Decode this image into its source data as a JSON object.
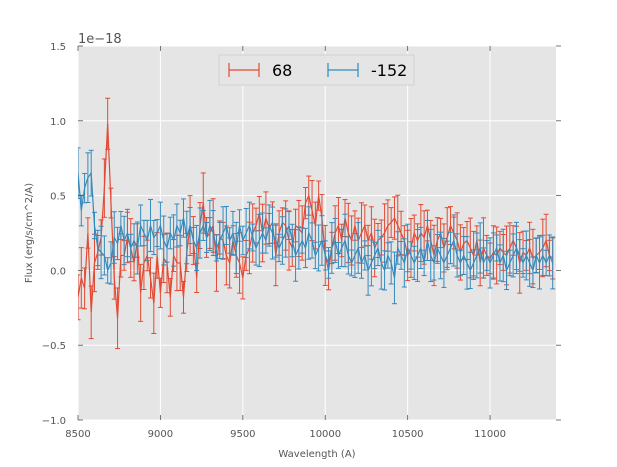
{
  "chart_data": {
    "type": "line",
    "title": "",
    "xlabel": "Wavelength (A)",
    "ylabel": "Flux (erg/s/cm^2/A)",
    "y_offset_label": "1e−18",
    "y_scale": 1e-18,
    "xlim": [
      8500,
      11400
    ],
    "ylim": [
      -1.0,
      1.5
    ],
    "xticks": [
      8500,
      9000,
      9500,
      10000,
      10500,
      11000
    ],
    "xtick_labels": [
      "8500",
      "9000",
      "9500",
      "10000",
      "10500",
      "11000"
    ],
    "yticks": [
      -1.0,
      -0.5,
      0.0,
      0.5,
      1.0,
      1.5
    ],
    "ytick_labels": [
      "−1.0",
      "−0.5",
      "0.0",
      "0.5",
      "1.0",
      "1.5"
    ],
    "grid": true,
    "legend_position": "top-center",
    "x_start": 8500,
    "x_step": 20,
    "series": [
      {
        "name": "68",
        "color": "#E24A33",
        "values": [
          -0.18,
          -0.05,
          -0.12,
          0.25,
          -0.28,
          0.05,
          0.12,
          0.22,
          0.55,
          0.98,
          0.45,
          -0.05,
          -0.32,
          0.1,
          0.1,
          0.22,
          0.15,
          0.05,
          0.2,
          -0.15,
          0.05,
          0.1,
          -0.05,
          -0.22,
          0.1,
          -0.15,
          0.08,
          0.05,
          -0.18,
          0.1,
          0.05,
          0.05,
          -0.18,
          0.12,
          0.3,
          0.2,
          -0.05,
          0.3,
          0.45,
          0.22,
          0.25,
          0.3,
          0.05,
          0.22,
          0.2,
          0.1,
          0.05,
          0.2,
          0.1,
          0.05,
          -0.05,
          0.1,
          0.15,
          0.25,
          0.3,
          0.38,
          0.25,
          0.35,
          0.28,
          0.32,
          0.1,
          0.25,
          0.32,
          0.3,
          0.2,
          0.15,
          0.3,
          0.28,
          0.25,
          0.45,
          0.5,
          0.4,
          0.3,
          0.5,
          0.35,
          0.1,
          0.0,
          0.15,
          0.25,
          0.3,
          0.2,
          0.35,
          0.25,
          0.2,
          0.3,
          0.2,
          0.25,
          0.3,
          0.2,
          0.25,
          0.15,
          0.2,
          0.22,
          0.25,
          0.3,
          0.32,
          0.35,
          0.3,
          0.25,
          0.2,
          0.1,
          0.15,
          0.25,
          0.2,
          0.25,
          0.22,
          0.3,
          0.2,
          0.1,
          0.2,
          0.25,
          0.15,
          0.22,
          0.3,
          0.25,
          0.2,
          0.12,
          0.18,
          0.2,
          0.15,
          0.1,
          0.2,
          0.05,
          0.15,
          0.1,
          0.08,
          0.12,
          0.1,
          0.15,
          0.12,
          0.1,
          0.15,
          0.2,
          0.15,
          0.05,
          0.12,
          0.1,
          0.15,
          0.08,
          0.1,
          0.12,
          0.15,
          0.2,
          0.1,
          0.08
        ],
        "error": 0.15
      },
      {
        "name": "-152",
        "color": "#348ABD",
        "values": [
          0.65,
          0.4,
          0.55,
          0.62,
          0.65,
          0.3,
          0.15,
          0.12,
          0.1,
          0.0,
          0.05,
          0.22,
          0.18,
          0.3,
          0.2,
          0.25,
          0.15,
          0.2,
          0.15,
          0.3,
          0.25,
          0.2,
          0.3,
          0.22,
          0.25,
          0.3,
          0.2,
          0.15,
          0.25,
          0.2,
          0.3,
          0.25,
          0.35,
          0.22,
          0.3,
          0.2,
          0.15,
          0.25,
          0.3,
          0.22,
          0.3,
          0.25,
          0.15,
          0.2,
          0.25,
          0.3,
          0.2,
          0.25,
          0.15,
          0.3,
          0.2,
          0.25,
          0.3,
          0.22,
          0.15,
          0.2,
          0.25,
          0.2,
          0.3,
          0.25,
          0.2,
          0.15,
          0.2,
          0.25,
          0.3,
          0.2,
          0.1,
          0.15,
          0.2,
          0.15,
          0.25,
          0.2,
          0.1,
          0.15,
          0.2,
          0.1,
          0.05,
          0.15,
          0.2,
          0.1,
          0.15,
          0.2,
          0.1,
          0.05,
          0.1,
          0.15,
          0.05,
          0.1,
          0.0,
          0.05,
          0.1,
          0.15,
          0.05,
          0.0,
          0.1,
          0.05,
          -0.05,
          0.15,
          0.1,
          0.05,
          0.15,
          0.1,
          0.05,
          0.1,
          0.15,
          0.05,
          0.2,
          0.1,
          0.05,
          0.15,
          0.1,
          0.05,
          0.1,
          0.15,
          0.2,
          0.1,
          0.05,
          0.1,
          0.05,
          0.0,
          0.05,
          0.1,
          0.15,
          0.05,
          0.1,
          0.05,
          0.1,
          0.15,
          0.05,
          0.1,
          0.0,
          0.05,
          0.1,
          0.15,
          0.1,
          0.05,
          0.1,
          0.05,
          0.0,
          0.1,
          0.05,
          0.1,
          0.05,
          0.1,
          0.05
        ],
        "error": 0.13
      }
    ]
  }
}
